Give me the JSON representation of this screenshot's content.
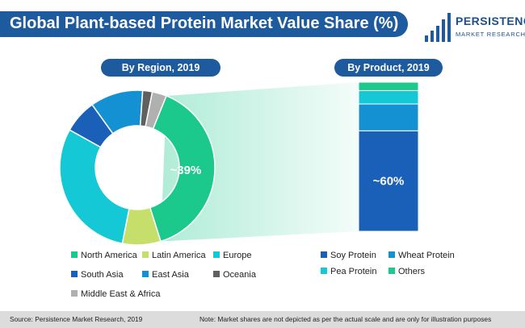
{
  "title": "Global Plant-based Protein Market Value Share (%)",
  "logo": {
    "top": "PERSISTENCE",
    "bottom": "MARKET RESEARCH"
  },
  "region_label": "By Region, 2019",
  "product_label": "By Product, 2019",
  "footer": {
    "source": "Source: Persistence Market Research, 2019",
    "note": "Note: Market shares are not depicted as per the actual scale and are only for illustration purposes"
  },
  "colors": {
    "brand": "#1d5a9e",
    "north_america": "#1cc98c",
    "latin_america": "#c6de6a",
    "europe": "#15c8d6",
    "south_asia": "#1a5fb8",
    "east_asia": "#1491d2",
    "oceania": "#606060",
    "mea": "#b0b0b0",
    "soy": "#1a5fb8",
    "wheat": "#1491d2",
    "pea": "#15c8d6",
    "others": "#1cc98c"
  },
  "chart_data": [
    {
      "type": "pie",
      "title": "By Region, 2019",
      "categories": [
        "North America",
        "Latin America",
        "Europe",
        "South Asia",
        "East Asia",
        "Oceania",
        "Middle East & Africa"
      ],
      "values": [
        39,
        8,
        30,
        7,
        11,
        2,
        3
      ],
      "annotation": "~39%",
      "legend": "bottom"
    },
    {
      "type": "bar",
      "title": "By Product, 2019",
      "stacked": true,
      "categories": [
        "Soy Protein",
        "Wheat Protein",
        "Pea Protein",
        "Others"
      ],
      "values": [
        60,
        16,
        8,
        5
      ],
      "annotation": "~60%",
      "legend": "bottom"
    }
  ]
}
